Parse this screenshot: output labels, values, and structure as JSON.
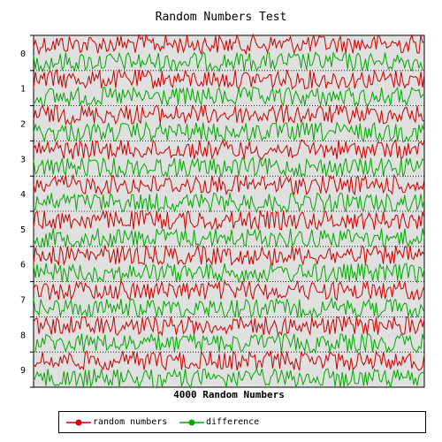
{
  "chart_data": {
    "type": "line",
    "title": "Random Numbers Test",
    "xlabel": "4000 Random Numbers",
    "ylabel": "",
    "y_tick_labels": [
      "0",
      "1",
      "2",
      "3",
      "4",
      "5",
      "6",
      "7",
      "8",
      "9"
    ],
    "grid": true,
    "legend_position": "bottom",
    "series": [
      {
        "name": "random numbers",
        "color": "#cc0000"
      },
      {
        "name": "difference",
        "color": "#00aa00"
      }
    ],
    "plot_background": "#e0e0e0"
  }
}
